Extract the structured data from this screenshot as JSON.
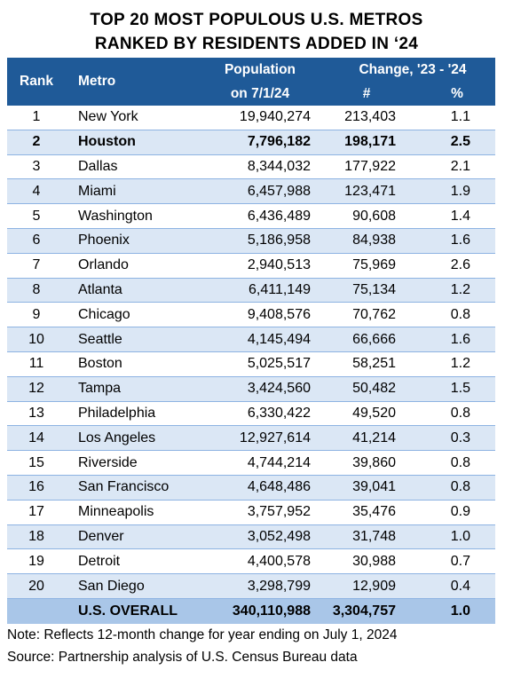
{
  "title_line1": "TOP 20 MOST POPULOUS U.S. METROS",
  "title_line2": "RANKED BY RESIDENTS ADDED IN ‘24",
  "headers": {
    "rank": "Rank",
    "metro": "Metro",
    "population_line1": "Population",
    "population_line2": "on 7/1/24",
    "change": "Change, '23 - '24",
    "change_num": "#",
    "change_pct": "%"
  },
  "colors": {
    "header_bg": "#1f5a98",
    "header_text": "#ffffff",
    "band_light": "#dbe7f5",
    "total_row_bg": "#a9c6e8",
    "row_border": "#8db3e2"
  },
  "highlight_metro": "Houston",
  "chart_data": {
    "type": "table",
    "title": "TOP 20 MOST POPULOUS U.S. METROS RANKED BY RESIDENTS ADDED IN ‘24",
    "columns": [
      "Rank",
      "Metro",
      "Population on 7/1/24",
      "Change, '23 - '24 #",
      "Change, '23 - '24 %"
    ],
    "rows": [
      {
        "rank": "1",
        "metro": "New York",
        "population": "19,940,274",
        "change_num": "213,403",
        "change_pct": "1.1"
      },
      {
        "rank": "2",
        "metro": "Houston",
        "population": "7,796,182",
        "change_num": "198,171",
        "change_pct": "2.5"
      },
      {
        "rank": "3",
        "metro": "Dallas",
        "population": "8,344,032",
        "change_num": "177,922",
        "change_pct": "2.1"
      },
      {
        "rank": "4",
        "metro": "Miami",
        "population": "6,457,988",
        "change_num": "123,471",
        "change_pct": "1.9"
      },
      {
        "rank": "5",
        "metro": "Washington",
        "population": "6,436,489",
        "change_num": "90,608",
        "change_pct": "1.4"
      },
      {
        "rank": "6",
        "metro": "Phoenix",
        "population": "5,186,958",
        "change_num": "84,938",
        "change_pct": "1.6"
      },
      {
        "rank": "7",
        "metro": "Orlando",
        "population": "2,940,513",
        "change_num": "75,969",
        "change_pct": "2.6"
      },
      {
        "rank": "8",
        "metro": "Atlanta",
        "population": "6,411,149",
        "change_num": "75,134",
        "change_pct": "1.2"
      },
      {
        "rank": "9",
        "metro": "Chicago",
        "population": "9,408,576",
        "change_num": "70,762",
        "change_pct": "0.8"
      },
      {
        "rank": "10",
        "metro": "Seattle",
        "population": "4,145,494",
        "change_num": "66,666",
        "change_pct": "1.6"
      },
      {
        "rank": "11",
        "metro": "Boston",
        "population": "5,025,517",
        "change_num": "58,251",
        "change_pct": "1.2"
      },
      {
        "rank": "12",
        "metro": "Tampa",
        "population": "3,424,560",
        "change_num": "50,482",
        "change_pct": "1.5"
      },
      {
        "rank": "13",
        "metro": "Philadelphia",
        "population": "6,330,422",
        "change_num": "49,520",
        "change_pct": "0.8"
      },
      {
        "rank": "14",
        "metro": "Los Angeles",
        "population": "12,927,614",
        "change_num": "41,214",
        "change_pct": "0.3"
      },
      {
        "rank": "15",
        "metro": "Riverside",
        "population": "4,744,214",
        "change_num": "39,860",
        "change_pct": "0.8"
      },
      {
        "rank": "16",
        "metro": "San Francisco",
        "population": "4,648,486",
        "change_num": "39,041",
        "change_pct": "0.8"
      },
      {
        "rank": "17",
        "metro": "Minneapolis",
        "population": "3,757,952",
        "change_num": "35,476",
        "change_pct": "0.9"
      },
      {
        "rank": "18",
        "metro": "Denver",
        "population": "3,052,498",
        "change_num": "31,748",
        "change_pct": "1.0"
      },
      {
        "rank": "19",
        "metro": "Detroit",
        "population": "4,400,578",
        "change_num": "30,988",
        "change_pct": "0.7"
      },
      {
        "rank": "20",
        "metro": "San Diego",
        "population": "3,298,799",
        "change_num": "12,909",
        "change_pct": "0.4"
      }
    ],
    "total": {
      "label": "U.S. OVERALL",
      "population": "340,110,988",
      "change_num": "3,304,757",
      "change_pct": "1.0"
    }
  },
  "footnotes": {
    "note": "Note: Reflects 12-month change for year ending on July 1, 2024",
    "source": "Source: Partnership analysis of U.S. Census Bureau data"
  }
}
